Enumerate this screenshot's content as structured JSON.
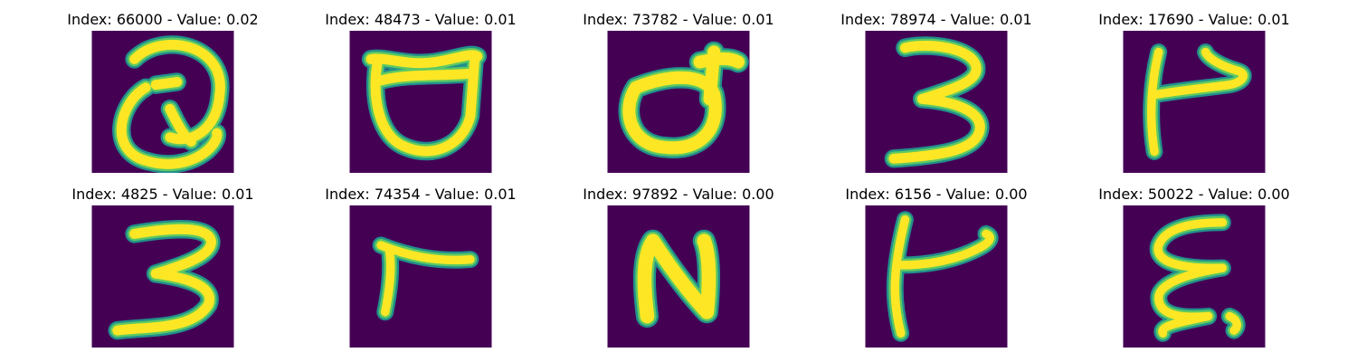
{
  "colors": {
    "background": "#440154",
    "stroke_outer": "#21908c",
    "stroke_mid": "#5ec962",
    "stroke_inner": "#fde725"
  },
  "tiles": [
    {
      "title": "Index: 66000 - Value: 0.02",
      "glyph": "Q-like loop"
    },
    {
      "title": "Index: 48473 - Value: 0.01",
      "glyph": "open bowl with horns"
    },
    {
      "title": "Index: 73782 - Value: 0.01",
      "glyph": "d-like loop"
    },
    {
      "title": "Index: 78974 - Value: 0.01",
      "glyph": "3"
    },
    {
      "title": "Index: 17690 - Value: 0.01",
      "glyph": "P-like"
    },
    {
      "title": "Index: 4825 - Value: 0.01",
      "glyph": "3"
    },
    {
      "title": "Index: 74354 - Value: 0.01",
      "glyph": "r"
    },
    {
      "title": "Index: 97892 - Value: 0.00",
      "glyph": "N"
    },
    {
      "title": "Index: 6156 - Value: 0.00",
      "glyph": "t-like"
    },
    {
      "title": "Index: 50022 - Value: 0.00",
      "glyph": "E-like"
    }
  ]
}
